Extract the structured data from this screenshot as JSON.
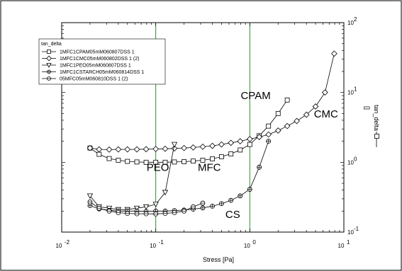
{
  "chart_data": {
    "type": "line",
    "title": "",
    "xlabel": "Stress [Pa]",
    "ylabel": "tan_delta",
    "ylabel_unit": "[]",
    "x_scale": "log",
    "y_scale": "log",
    "xlim": [
      0.01,
      10
    ],
    "ylim": [
      0.1,
      100
    ],
    "x_ticks": [
      {
        "base": "10",
        "exp": "-2"
      },
      {
        "base": "10",
        "exp": "-1"
      },
      {
        "base": "10",
        "exp": "0"
      },
      {
        "base": "10",
        "exp": "1"
      }
    ],
    "y_ticks": [
      {
        "base": "10",
        "exp": "-1"
      },
      {
        "base": "10",
        "exp": "0"
      },
      {
        "base": "10",
        "exp": "1"
      },
      {
        "base": "10",
        "exp": "2"
      }
    ],
    "vertical_lines": [
      0.1,
      1.0
    ],
    "vertical_line_color": "#2e8b2e",
    "legend": {
      "title": "tan_delta",
      "position": "top-left"
    },
    "series": [
      {
        "name": "1MFC1CPAM05mM060807DSS 1",
        "marker": "square",
        "x": [
          0.02,
          0.025,
          0.032,
          0.04,
          0.05,
          0.063,
          0.079,
          0.1,
          0.126,
          0.158,
          0.2,
          0.25,
          0.316,
          0.4,
          0.5,
          0.63,
          0.79,
          1.0,
          1.26,
          1.58,
          2.0,
          2.5
        ],
        "y": [
          1.6,
          1.3,
          1.13,
          1.07,
          1.03,
          1.01,
          1.0,
          1.0,
          1.0,
          1.01,
          1.02,
          1.04,
          1.07,
          1.12,
          1.2,
          1.32,
          1.5,
          1.8,
          2.4,
          3.3,
          5.0,
          7.8
        ]
      },
      {
        "name": "1MFC1CMC05mM060802DSS 1 (2)",
        "marker": "diamond",
        "x": [
          0.02,
          0.025,
          0.032,
          0.04,
          0.05,
          0.063,
          0.079,
          0.1,
          0.126,
          0.158,
          0.2,
          0.25,
          0.316,
          0.4,
          0.5,
          0.63,
          0.79,
          1.0,
          1.26,
          1.58,
          2.0,
          2.5,
          3.16,
          4.0,
          5.0,
          6.3,
          7.9
        ],
        "y": [
          1.6,
          1.53,
          1.52,
          1.53,
          1.53,
          1.53,
          1.54,
          1.55,
          1.56,
          1.58,
          1.6,
          1.63,
          1.67,
          1.72,
          1.8,
          1.9,
          2.0,
          2.15,
          2.3,
          2.5,
          2.85,
          3.3,
          3.9,
          4.8,
          6.3,
          10.0,
          36.0
        ]
      },
      {
        "name": "1MFC1PEO05mM060807DSS 1",
        "marker": "triangle-down",
        "x": [
          0.02,
          0.025,
          0.032,
          0.04,
          0.05,
          0.063,
          0.079,
          0.1,
          0.126,
          0.158
        ],
        "y": [
          0.33,
          0.23,
          0.22,
          0.21,
          0.21,
          0.22,
          0.23,
          0.25,
          0.37,
          1.8
        ]
      },
      {
        "name": "1MFC1CSTARCH05mM060814DSS 1",
        "marker": "circle-plus",
        "x": [
          0.02,
          0.025,
          0.032,
          0.04,
          0.05,
          0.063,
          0.079,
          0.1,
          0.126,
          0.158,
          0.2,
          0.25,
          0.316,
          0.4,
          0.5,
          0.63,
          0.79,
          1.0,
          1.26,
          1.58
        ],
        "y": [
          0.24,
          0.215,
          0.205,
          0.2,
          0.2,
          0.2,
          0.198,
          0.2,
          0.2,
          0.203,
          0.207,
          0.213,
          0.222,
          0.235,
          0.255,
          0.285,
          0.33,
          0.41,
          0.85,
          2.0
        ]
      },
      {
        "name": "05MFC05mM060810DSS 1 (2)",
        "marker": "circle-minus",
        "x": [
          0.02,
          0.025,
          0.032,
          0.04,
          0.05,
          0.063,
          0.079,
          0.1,
          0.126,
          0.158,
          0.2,
          0.25,
          0.316
        ],
        "y": [
          0.27,
          0.22,
          0.2,
          0.19,
          0.185,
          0.183,
          0.183,
          0.182,
          0.185,
          0.19,
          0.2,
          0.23,
          0.26
        ]
      }
    ],
    "annotations": [
      {
        "text": "CPAM",
        "x": 0.8,
        "y": 8.0
      },
      {
        "text": "CMC",
        "x": 4.8,
        "y": 4.4
      },
      {
        "text": "PEO",
        "x": 0.08,
        "y": 0.75
      },
      {
        "text": "MFC",
        "x": 0.28,
        "y": 0.75
      },
      {
        "text": "CS",
        "x": 0.55,
        "y": 0.16
      }
    ]
  }
}
